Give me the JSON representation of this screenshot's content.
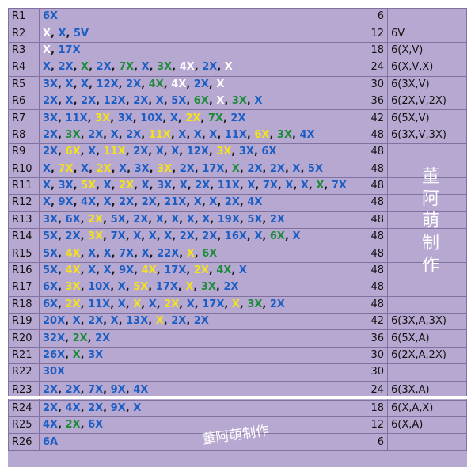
{
  "colors": {
    "blue": "#1a5ec4",
    "white": "#ffffff",
    "green": "#1d8c3a",
    "yellow": "#f4e21a",
    "background": "#b7a8d1"
  },
  "watermark_vertical": [
    "董",
    "阿",
    "萌",
    "制",
    "作"
  ],
  "watermark_horizontal": "董阿萌制作",
  "rows": [
    {
      "label": "R1",
      "count": "6",
      "note": "",
      "tokens": [
        [
          "6X",
          "b"
        ]
      ]
    },
    {
      "label": "R2",
      "count": "12",
      "note": "6V",
      "tokens": [
        [
          "X",
          "w"
        ],
        [
          "X",
          "b"
        ],
        [
          "5V",
          "b"
        ]
      ]
    },
    {
      "label": "R3",
      "count": "18",
      "note": "6(X,V)",
      "tokens": [
        [
          "X",
          "w"
        ],
        [
          "17X",
          "b"
        ]
      ]
    },
    {
      "label": "R4",
      "count": "24",
      "note": "6(X,V,X)",
      "tokens": [
        [
          "X",
          "b"
        ],
        [
          "2X",
          "b"
        ],
        [
          "X",
          "g"
        ],
        [
          "2X",
          "b"
        ],
        [
          "7X",
          "g"
        ],
        [
          "X",
          "b"
        ],
        [
          "3X",
          "g"
        ],
        [
          "4X",
          "w"
        ],
        [
          "2X",
          "b"
        ],
        [
          "X",
          "w"
        ]
      ]
    },
    {
      "label": "R5",
      "count": "30",
      "note": "6(3X,V)",
      "tokens": [
        [
          "3X",
          "b"
        ],
        [
          "X",
          "b"
        ],
        [
          "X",
          "b"
        ],
        [
          "12X",
          "b"
        ],
        [
          "2X",
          "b"
        ],
        [
          "4X",
          "g"
        ],
        [
          "4X",
          "w"
        ],
        [
          "2X",
          "b"
        ],
        [
          "X",
          "w"
        ]
      ]
    },
    {
      "label": "R6",
      "count": "36",
      "note": "6(2X,V,2X)",
      "tokens": [
        [
          "2X",
          "b"
        ],
        [
          "X",
          "b"
        ],
        [
          "2X",
          "b"
        ],
        [
          "12X",
          "b"
        ],
        [
          "2X",
          "b"
        ],
        [
          "X",
          "b"
        ],
        [
          "5X",
          "b"
        ],
        [
          "6X",
          "g"
        ],
        [
          "X",
          "w"
        ],
        [
          "3X",
          "g"
        ],
        [
          "X",
          "b"
        ]
      ]
    },
    {
      "label": "R7",
      "count": "42",
      "note": "6(5X,V)",
      "tokens": [
        [
          "3X",
          "b"
        ],
        [
          "11X",
          "b"
        ],
        [
          "3X",
          "y"
        ],
        [
          "3X",
          "b"
        ],
        [
          "10X",
          "b"
        ],
        [
          "X",
          "b"
        ],
        [
          "2X",
          "y"
        ],
        [
          "7X",
          "g"
        ],
        [
          "2X",
          "b"
        ]
      ]
    },
    {
      "label": "R8",
      "count": "48",
      "note": "6(3X,V,3X)",
      "tokens": [
        [
          "2X",
          "b"
        ],
        [
          "3X",
          "g"
        ],
        [
          "2X",
          "b"
        ],
        [
          "X",
          "b"
        ],
        [
          "2X",
          "b"
        ],
        [
          "11X",
          "y"
        ],
        [
          "X",
          "b"
        ],
        [
          "X",
          "b"
        ],
        [
          "X",
          "b"
        ],
        [
          "11X",
          "b"
        ],
        [
          "6X",
          "y"
        ],
        [
          "3X",
          "g"
        ],
        [
          "4X",
          "b"
        ]
      ]
    },
    {
      "label": "R9",
      "count": "48",
      "note": "",
      "tokens": [
        [
          "2X",
          "b"
        ],
        [
          "6X",
          "y"
        ],
        [
          "X",
          "b"
        ],
        [
          "11X",
          "y"
        ],
        [
          "2X",
          "b"
        ],
        [
          "X",
          "b"
        ],
        [
          "X",
          "b"
        ],
        [
          "12X",
          "b"
        ],
        [
          "3X",
          "y"
        ],
        [
          "3X",
          "b"
        ],
        [
          "6X",
          "b"
        ]
      ]
    },
    {
      "label": "R10",
      "count": "48",
      "note": "",
      "tokens": [
        [
          "X",
          "b"
        ],
        [
          "7X",
          "y"
        ],
        [
          "X",
          "b"
        ],
        [
          "2X",
          "y"
        ],
        [
          "X",
          "b"
        ],
        [
          "3X",
          "b"
        ],
        [
          "3X",
          "y"
        ],
        [
          "2X",
          "b"
        ],
        [
          "17X",
          "b"
        ],
        [
          "X",
          "g"
        ],
        [
          "2X",
          "b"
        ],
        [
          "2X",
          "b"
        ],
        [
          "X",
          "b"
        ],
        [
          "5X",
          "b"
        ]
      ]
    },
    {
      "label": "R11",
      "count": "48",
      "note": "",
      "tokens": [
        [
          "X",
          "b"
        ],
        [
          "3X",
          "b"
        ],
        [
          "5X",
          "y"
        ],
        [
          "X",
          "b"
        ],
        [
          "2X",
          "y"
        ],
        [
          "X",
          "b"
        ],
        [
          "3X",
          "b"
        ],
        [
          "X",
          "b"
        ],
        [
          "2X",
          "b"
        ],
        [
          "11X",
          "b"
        ],
        [
          "X",
          "b"
        ],
        [
          "7X",
          "b"
        ],
        [
          "X",
          "b"
        ],
        [
          "X",
          "b"
        ],
        [
          "X",
          "g"
        ],
        [
          "7X",
          "b"
        ]
      ]
    },
    {
      "label": "R12",
      "count": "48",
      "note": "",
      "tokens": [
        [
          "X",
          "b"
        ],
        [
          "9X",
          "b"
        ],
        [
          "4X",
          "b"
        ],
        [
          "X",
          "b"
        ],
        [
          "2X",
          "b"
        ],
        [
          "2X",
          "b"
        ],
        [
          "21X",
          "b"
        ],
        [
          "X",
          "b"
        ],
        [
          "X",
          "b"
        ],
        [
          "2X",
          "b"
        ],
        [
          "4X",
          "b"
        ]
      ]
    },
    {
      "label": "R13",
      "count": "48",
      "note": "",
      "tokens": [
        [
          "3X",
          "b"
        ],
        [
          "6X",
          "b"
        ],
        [
          "2X",
          "y"
        ],
        [
          "5X",
          "b"
        ],
        [
          "2X",
          "b"
        ],
        [
          "X",
          "b"
        ],
        [
          "X",
          "b"
        ],
        [
          "X",
          "b"
        ],
        [
          "X",
          "b"
        ],
        [
          "19X",
          "b"
        ],
        [
          "5X",
          "b"
        ],
        [
          "2X",
          "b"
        ]
      ]
    },
    {
      "label": "R14",
      "count": "48",
      "note": "",
      "tokens": [
        [
          "5X",
          "b"
        ],
        [
          "2X",
          "b"
        ],
        [
          "3X",
          "y"
        ],
        [
          "7X",
          "b"
        ],
        [
          "X",
          "b"
        ],
        [
          "X",
          "b"
        ],
        [
          "X",
          "b"
        ],
        [
          "2X",
          "b"
        ],
        [
          "2X",
          "b"
        ],
        [
          "16X",
          "b"
        ],
        [
          "X",
          "b"
        ],
        [
          "6X",
          "g"
        ],
        [
          "X",
          "b"
        ]
      ]
    },
    {
      "label": "R15",
      "count": "48",
      "note": "",
      "tokens": [
        [
          "5X",
          "b"
        ],
        [
          "4X",
          "y"
        ],
        [
          "X",
          "b"
        ],
        [
          "X",
          "b"
        ],
        [
          "7X",
          "b"
        ],
        [
          "X",
          "b"
        ],
        [
          "22X",
          "b"
        ],
        [
          "X",
          "y"
        ],
        [
          "6X",
          "g"
        ]
      ]
    },
    {
      "label": "R16",
      "count": "48",
      "note": "",
      "tokens": [
        [
          "5X",
          "b"
        ],
        [
          "4X",
          "y"
        ],
        [
          "X",
          "b"
        ],
        [
          "X",
          "b"
        ],
        [
          "9X",
          "b"
        ],
        [
          "4X",
          "y"
        ],
        [
          "17X",
          "b"
        ],
        [
          "2X",
          "y"
        ],
        [
          "4X",
          "g"
        ],
        [
          "X",
          "b"
        ]
      ]
    },
    {
      "label": "R17",
      "count": "48",
      "note": "",
      "tokens": [
        [
          "6X",
          "b"
        ],
        [
          "3X",
          "y"
        ],
        [
          "10X",
          "b"
        ],
        [
          "X",
          "b"
        ],
        [
          "5X",
          "y"
        ],
        [
          "17X",
          "b"
        ],
        [
          "X",
          "y"
        ],
        [
          "3X",
          "g"
        ],
        [
          "2X",
          "b"
        ]
      ]
    },
    {
      "label": "R18",
      "count": "48",
      "note": "",
      "tokens": [
        [
          "6X",
          "b"
        ],
        [
          "2X",
          "y"
        ],
        [
          "11X",
          "b"
        ],
        [
          "X",
          "b"
        ],
        [
          "X",
          "y"
        ],
        [
          "X",
          "b"
        ],
        [
          "2X",
          "y"
        ],
        [
          "X",
          "b"
        ],
        [
          "17X",
          "b"
        ],
        [
          "X",
          "y"
        ],
        [
          "3X",
          "g"
        ],
        [
          "2X",
          "b"
        ]
      ]
    },
    {
      "label": "R19",
      "count": "42",
      "note": "6(3X,A,3X)",
      "tokens": [
        [
          "20X",
          "b"
        ],
        [
          "X",
          "b"
        ],
        [
          "2X",
          "b"
        ],
        [
          "X",
          "b"
        ],
        [
          "13X",
          "b"
        ],
        [
          "X",
          "y"
        ],
        [
          "2X",
          "b"
        ],
        [
          "2X",
          "b"
        ]
      ]
    },
    {
      "label": "R20",
      "count": "36",
      "note": "6(5X,A)",
      "tokens": [
        [
          "32X",
          "b"
        ],
        [
          "2X",
          "g"
        ],
        [
          "2X",
          "b"
        ]
      ]
    },
    {
      "label": "R21",
      "count": "30",
      "note": "6(2X,A,2X)",
      "tokens": [
        [
          "26X",
          "b"
        ],
        [
          "X",
          "g"
        ],
        [
          "3X",
          "b"
        ]
      ]
    },
    {
      "label": "R22",
      "count": "30",
      "note": "",
      "tokens": [
        [
          "30X",
          "b"
        ]
      ]
    },
    {
      "label": "R23",
      "count": "24",
      "note": "6(3X,A)",
      "tokens": [
        [
          "2X",
          "b"
        ],
        [
          "2X",
          "b"
        ],
        [
          "7X",
          "b"
        ],
        [
          "9X",
          "b"
        ],
        [
          "4X",
          "b"
        ]
      ]
    },
    {
      "label": "R24",
      "count": "18",
      "note": "6(X,A,X)",
      "tokens": [
        [
          "2X",
          "b"
        ],
        [
          "4X",
          "b"
        ],
        [
          "2X",
          "b"
        ],
        [
          "9X",
          "b"
        ],
        [
          "X",
          "b"
        ]
      ]
    },
    {
      "label": "R25",
      "count": "12",
      "note": "6(X,A)",
      "tokens": [
        [
          "4X",
          "b"
        ],
        [
          "2X",
          "g"
        ],
        [
          "6X",
          "b"
        ]
      ]
    },
    {
      "label": "R26",
      "count": "6",
      "note": "",
      "tokens": [
        [
          "6A",
          "b"
        ]
      ]
    }
  ]
}
